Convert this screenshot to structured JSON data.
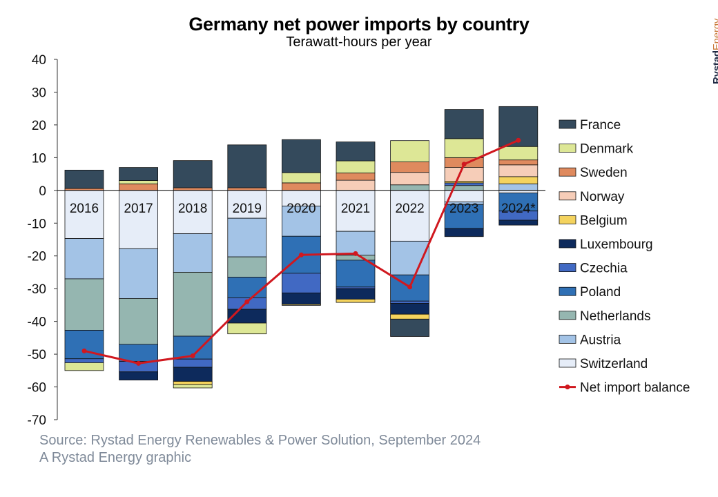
{
  "header": {
    "title": "Germany net power imports by country",
    "subtitle": "Terawatt-hours per year",
    "brand_bold": "Rystad",
    "brand_light": "Energy"
  },
  "footer": {
    "source": "Source: Rystad Energy Renewables & Power Solution, September 2024",
    "credit": "A Rystad Energy graphic"
  },
  "chart_data": {
    "type": "bar",
    "stacked": true,
    "ylim": [
      -70,
      40
    ],
    "yticks": [
      40,
      30,
      20,
      10,
      0,
      -10,
      -20,
      -30,
      -40,
      -50,
      -60,
      -70
    ],
    "grid": false,
    "legend_position": "right",
    "categories": [
      "2016",
      "2017",
      "2018",
      "2019",
      "2020",
      "2021",
      "2022",
      "2023",
      "2024*"
    ],
    "series": [
      {
        "name": "Switzerland",
        "color": "#e6edf8",
        "values": [
          -14.7,
          -17.8,
          -13.2,
          -8.5,
          -4.8,
          -12.5,
          -15.5,
          -3.5,
          -0.8
        ]
      },
      {
        "name": "Austria",
        "color": "#a3c3e6",
        "values": [
          -12.3,
          -15.2,
          -11.8,
          -11.8,
          -9.2,
          -7.3,
          -10.3,
          -0.8,
          2.0
        ]
      },
      {
        "name": "Netherlands",
        "color": "#95b6b0",
        "values": [
          -15.7,
          -14.0,
          -19.5,
          -6.2,
          0,
          -1.5,
          1.7,
          1.5,
          0
        ]
      },
      {
        "name": "Poland",
        "color": "#2f70b5",
        "values": [
          -8.7,
          -5.2,
          -7.0,
          -6.3,
          -11.3,
          -8.2,
          -8.0,
          -7.3,
          -5.5
        ]
      },
      {
        "name": "Czechia",
        "color": "#4169c3",
        "values": [
          -1.2,
          -3.2,
          -2.5,
          -3.5,
          -6.0,
          -0.5,
          -0.7,
          0.8,
          -2.8
        ]
      },
      {
        "name": "Luxembourg",
        "color": "#0d2a5c",
        "values": [
          0,
          -2.5,
          -4.3,
          -4.2,
          -3.5,
          -3.2,
          -3.3,
          -2.5,
          -1.5
        ]
      },
      {
        "name": "Belgium",
        "color": "#f4d35e",
        "values": [
          0,
          0,
          -1.0,
          0,
          -0.3,
          -1.0,
          -1.5,
          0.5,
          2.2
        ]
      },
      {
        "name": "Norway",
        "color": "#f6cdb8",
        "values": [
          0,
          0,
          0,
          0,
          0,
          3.1,
          3.8,
          4.2,
          3.6
        ]
      },
      {
        "name": "Sweden",
        "color": "#df8a5e",
        "values": [
          0.6,
          2.0,
          0.8,
          0.8,
          2.3,
          2.2,
          3.2,
          3.0,
          1.5
        ]
      },
      {
        "name": "Denmark",
        "color": "#dde796",
        "values": [
          -2.4,
          1.0,
          -1.0,
          -3.3,
          3.1,
          3.7,
          6.5,
          5.8,
          4.1
        ]
      },
      {
        "name": "France",
        "color": "#344a5c",
        "values": [
          5.6,
          4.0,
          8.3,
          13.1,
          10.1,
          5.8,
          -5.3,
          8.9,
          12.2
        ]
      }
    ],
    "line": {
      "name": "Net import balance",
      "color": "#d0181f",
      "values": [
        -49.0,
        -52.8,
        -50.5,
        -34.0,
        -19.7,
        -19.3,
        -29.5,
        8.0,
        15.3
      ]
    },
    "legend_order": [
      "France",
      "Denmark",
      "Sweden",
      "Norway",
      "Belgium",
      "Luxembourg",
      "Czechia",
      "Poland",
      "Netherlands",
      "Austria",
      "Switzerland",
      "Net import balance"
    ]
  }
}
